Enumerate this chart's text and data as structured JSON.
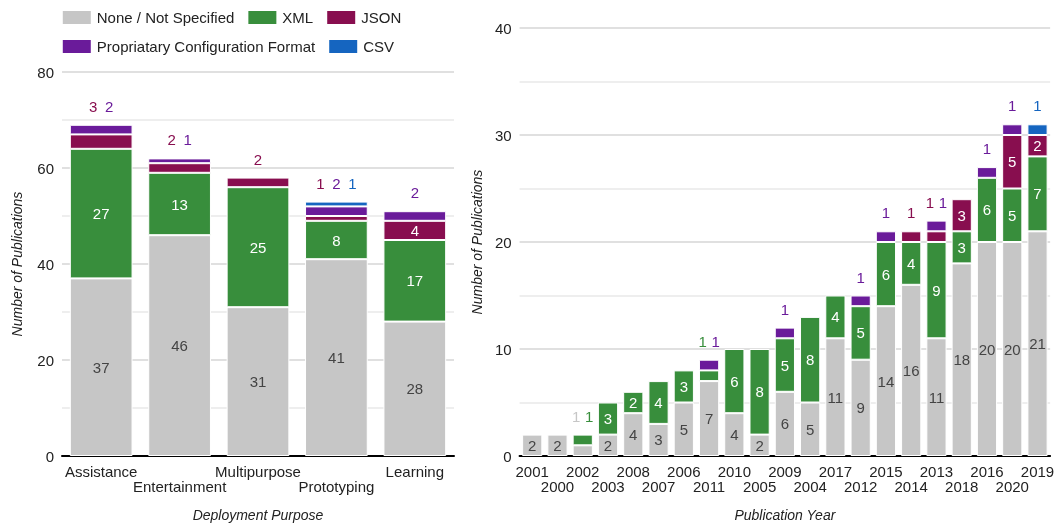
{
  "chart_data": [
    {
      "type": "bar",
      "stacked": true,
      "xlabel": "Deployment Purpose",
      "ylabel": "Number of Publications",
      "categories": [
        "Assistance",
        "Entertainment",
        "Multipurpose",
        "Prototyping",
        "Learning"
      ],
      "ylim": [
        0,
        80
      ],
      "yticks": [
        0,
        20,
        40,
        60,
        80
      ],
      "grid": true,
      "legend": "top",
      "data_labels": true,
      "series": [
        {
          "name": "None / Not Specified",
          "color": "#c6c6c6",
          "values": [
            37,
            46,
            31,
            41,
            28
          ]
        },
        {
          "name": "XML",
          "color": "#388e3c",
          "values": [
            27,
            13,
            25,
            8,
            17
          ]
        },
        {
          "name": "JSON",
          "color": "#880e4f",
          "values": [
            3,
            2,
            2,
            1,
            4
          ]
        },
        {
          "name": "Propriatary Configuration Format",
          "color": "#6a1b9a",
          "values": [
            2,
            1,
            null,
            2,
            2
          ]
        },
        {
          "name": "CSV",
          "color": "#1565c0",
          "values": [
            null,
            null,
            null,
            1,
            null
          ]
        }
      ]
    },
    {
      "type": "bar",
      "stacked": true,
      "xlabel": "Publication Year",
      "ylabel": "Number of Publications",
      "categories": [
        "2001",
        "2000",
        "2002",
        "2003",
        "2008",
        "2007",
        "2006",
        "2011",
        "2010",
        "2005",
        "2009",
        "2004",
        "2017",
        "2012",
        "2015",
        "2014",
        "2013",
        "2018",
        "2016",
        "2020",
        "2019"
      ],
      "ylim": [
        0,
        40
      ],
      "yticks": [
        0,
        10,
        20,
        30,
        40
      ],
      "grid": true,
      "data_labels": true,
      "series": [
        {
          "color": "#c6c6c6",
          "values": [
            2,
            2,
            1,
            2,
            4,
            3,
            5,
            7,
            4,
            2,
            6,
            5,
            11,
            9,
            14,
            16,
            11,
            18,
            20,
            20,
            21
          ]
        },
        {
          "color": "#388e3c",
          "values": [
            null,
            null,
            1,
            3,
            2,
            4,
            3,
            1,
            6,
            8,
            5,
            8,
            4,
            5,
            6,
            4,
            9,
            3,
            6,
            5,
            7
          ]
        },
        {
          "color": "#880e4f",
          "values": [
            null,
            null,
            null,
            null,
            null,
            null,
            null,
            null,
            null,
            null,
            null,
            null,
            null,
            null,
            null,
            1,
            1,
            3,
            null,
            5,
            2
          ]
        },
        {
          "color": "#6a1b9a",
          "values": [
            null,
            null,
            null,
            null,
            null,
            null,
            null,
            1,
            null,
            null,
            1,
            null,
            null,
            1,
            1,
            null,
            1,
            null,
            1,
            1,
            null
          ]
        },
        {
          "color": "#1565c0",
          "values": [
            null,
            null,
            null,
            null,
            null,
            null,
            null,
            null,
            null,
            null,
            null,
            null,
            null,
            null,
            null,
            null,
            null,
            null,
            null,
            null,
            1
          ]
        }
      ]
    }
  ]
}
